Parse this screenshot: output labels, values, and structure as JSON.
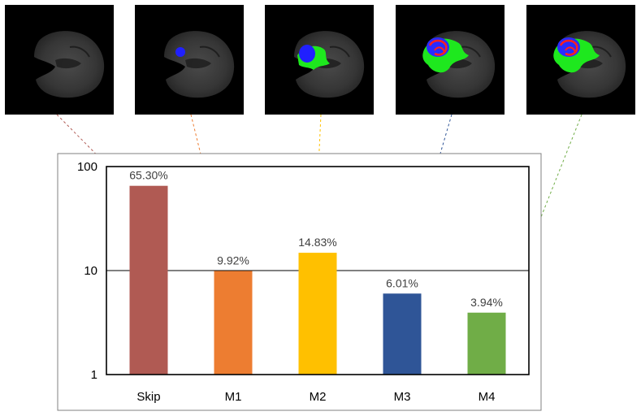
{
  "chart_data": {
    "type": "bar",
    "yscale": "log",
    "ylim": [
      1,
      100
    ],
    "yticks": [
      1,
      10,
      100
    ],
    "ytick_labels": [
      "1",
      "10",
      "100"
    ],
    "grid": true,
    "categories": [
      "Skip",
      "M1",
      "M2",
      "M3",
      "M4"
    ],
    "values": [
      65.3,
      9.92,
      14.83,
      6.01,
      3.94
    ],
    "data_labels": [
      "65.30%",
      "9.92%",
      "14.83%",
      "6.01%",
      "3.94%"
    ],
    "colors": [
      "#b05a53",
      "#ed7d31",
      "#ffc000",
      "#2f5597",
      "#70ad47"
    ],
    "title": "",
    "xlabel": "",
    "ylabel": ""
  },
  "thumbnails": [
    {
      "name": "scan-skip",
      "overlay": "none"
    },
    {
      "name": "scan-m1",
      "overlay": "blue"
    },
    {
      "name": "scan-m2",
      "overlay": "blue-green"
    },
    {
      "name": "scan-m3",
      "overlay": "blue-red-green"
    },
    {
      "name": "scan-m4",
      "overlay": "blue-red-green"
    }
  ]
}
